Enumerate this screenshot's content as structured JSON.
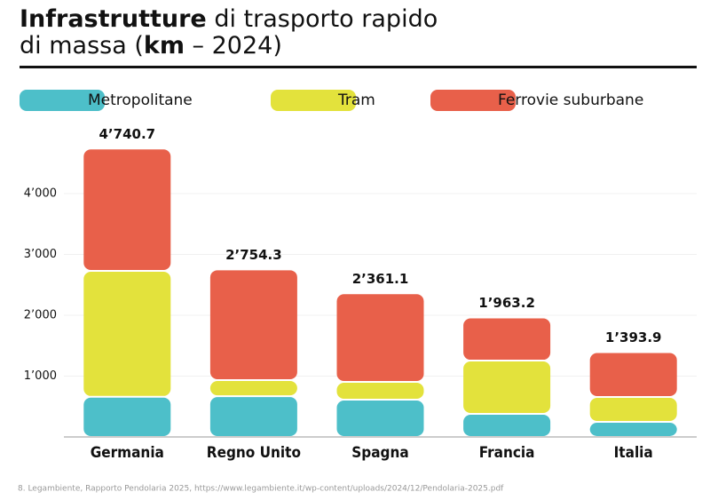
{
  "chart_data": {
    "type": "stacked-bar",
    "title_parts": [
      "Infrastrutture",
      " di trasporto rapido",
      "di massa (",
      "km",
      " – 2024)"
    ],
    "categories": [
      "Germania",
      "Regno Unito",
      "Spagna",
      "Francia",
      "Italia"
    ],
    "series": [
      {
        "name": "Metropolitane",
        "color": "#4dbfc9",
        "values": [
          660,
          670,
          613,
          380,
          248
        ]
      },
      {
        "name": "Tram",
        "color": "#e3e23c",
        "values": [
          2070,
          264,
          292,
          875,
          409
        ]
      },
      {
        "name": "Ferrovie suburbane",
        "color": "#e8604a",
        "values": [
          2010.7,
          1820.3,
          1456.1,
          708.2,
          736.9
        ]
      }
    ],
    "totals": [
      4740.7,
      2754.3,
      2361.1,
      1963.2,
      1393.9
    ],
    "total_labels": [
      "4’740.7",
      "2’754.3",
      "2’361.1",
      "1’963.2",
      "1’393.9"
    ],
    "ylim": [
      0,
      5000
    ],
    "yticks": [
      {
        "value": 1000,
        "label": "1’000"
      },
      {
        "value": 2000,
        "label": "2’000"
      },
      {
        "value": 3000,
        "label": "3’000"
      },
      {
        "value": 4000,
        "label": "4’000"
      }
    ],
    "grid": true,
    "source": "8. Legambiente, Rapporto Pendolaria 2025, https://www.legambiente.it/wp-content/uploads/2024/12/Pendolaria-2025.pdf"
  }
}
